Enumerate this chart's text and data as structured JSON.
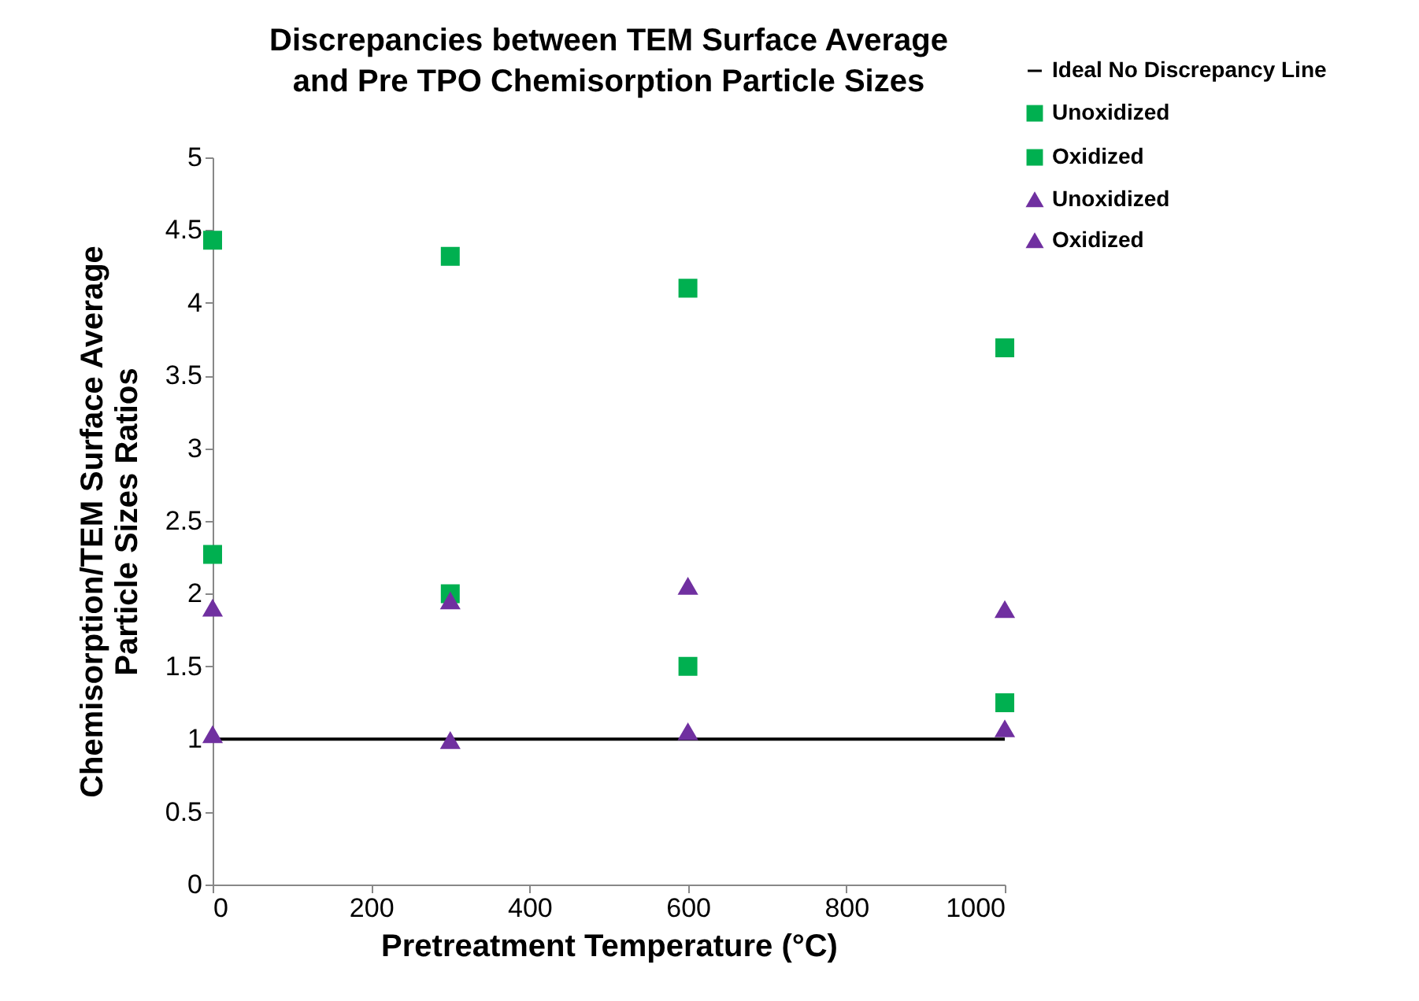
{
  "chart_data": {
    "type": "scatter",
    "title": "Discrepancies between TEM Surface Average\nand Pre TPO Chemisorption Particle Sizes",
    "xlabel": "Pretreatment Temperature (°C)",
    "ylabel": "Chemisorption/TEM Surface Average\nParticle Sizes Ratios",
    "x": [
      0,
      300,
      600,
      1000
    ],
    "series": [
      {
        "name": "Ideal No Discrepancy Line",
        "type": "line",
        "color": "#000000",
        "x": [
          0,
          1000
        ],
        "values": [
          1,
          1
        ],
        "line_style": "solid"
      },
      {
        "name": "Unoxidized",
        "color": "#00b050",
        "marker": "square",
        "values": [
          2.27,
          2.0,
          1.5,
          1.25
        ]
      },
      {
        "name": "Oxidized",
        "color": "#00b050",
        "marker": "square",
        "values": [
          4.43,
          4.32,
          4.1,
          3.69
        ]
      },
      {
        "name": "Unoxidized",
        "color": "#7030a0",
        "marker": "triangle",
        "values": [
          1.03,
          0.99,
          1.05,
          1.07
        ]
      },
      {
        "name": "Oxidized",
        "color": "#7030a0",
        "marker": "triangle",
        "values": [
          1.9,
          1.95,
          2.05,
          1.89
        ]
      }
    ],
    "xlim": [
      0,
      1000
    ],
    "xticks": [
      0,
      200,
      400,
      600,
      800,
      1000
    ],
    "ylim": [
      0,
      5
    ],
    "yticks": [
      0,
      0.5,
      1,
      1.5,
      2,
      2.5,
      3,
      3.5,
      4,
      4.5,
      5
    ],
    "grid": false,
    "legend": "top right"
  }
}
